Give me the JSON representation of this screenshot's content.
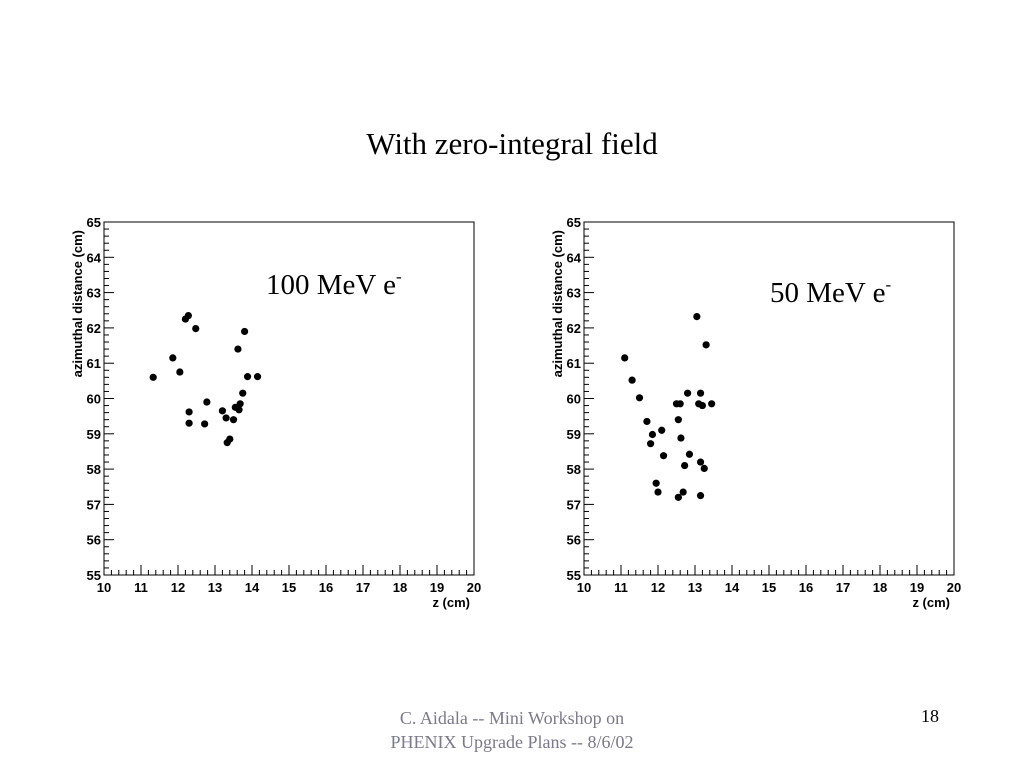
{
  "slide": {
    "title": "With zero-integral field",
    "footer_line1": "C. Aidala -- Mini Workshop on",
    "footer_line2": "PHENIX Upgrade Plans -- 8/6/02",
    "page_number": "18"
  },
  "chart_data": [
    {
      "type": "scatter",
      "title": "",
      "annotation": "100 MeV e",
      "annotation_superscript": "-",
      "xlabel": "z (cm)",
      "ylabel": "azimuthal distance (cm)",
      "xlim": [
        10,
        20
      ],
      "ylim": [
        55,
        65
      ],
      "xticks": [
        "10",
        "11",
        "12",
        "13",
        "14",
        "15",
        "16",
        "17",
        "18",
        "19",
        "20"
      ],
      "yticks": [
        "55",
        "56",
        "57",
        "58",
        "59",
        "60",
        "61",
        "62",
        "63",
        "64",
        "65"
      ],
      "grid": false,
      "marker_color": "#000000",
      "points": [
        [
          11.33,
          60.6
        ],
        [
          11.86,
          61.15
        ],
        [
          12.05,
          60.75
        ],
        [
          12.2,
          62.25
        ],
        [
          12.28,
          62.35
        ],
        [
          12.48,
          61.98
        ],
        [
          12.3,
          59.62
        ],
        [
          12.3,
          59.3
        ],
        [
          12.72,
          59.28
        ],
        [
          12.78,
          59.9
        ],
        [
          13.2,
          59.65
        ],
        [
          13.3,
          59.45
        ],
        [
          13.33,
          58.75
        ],
        [
          13.4,
          58.85
        ],
        [
          13.5,
          59.4
        ],
        [
          13.55,
          59.75
        ],
        [
          13.62,
          61.4
        ],
        [
          13.65,
          59.68
        ],
        [
          13.68,
          59.85
        ],
        [
          13.75,
          60.15
        ],
        [
          13.8,
          61.9
        ],
        [
          13.88,
          60.62
        ],
        [
          14.15,
          60.62
        ]
      ]
    },
    {
      "type": "scatter",
      "title": "",
      "annotation": "50 MeV e",
      "annotation_superscript": "-",
      "xlabel": "z (cm)",
      "ylabel": "azimuthal distance (cm)",
      "xlim": [
        10,
        20
      ],
      "ylim": [
        55,
        65
      ],
      "xticks": [
        "10",
        "11",
        "12",
        "13",
        "14",
        "15",
        "16",
        "17",
        "18",
        "19",
        "20"
      ],
      "yticks": [
        "55",
        "56",
        "57",
        "58",
        "59",
        "60",
        "61",
        "62",
        "63",
        "64",
        "65"
      ],
      "grid": false,
      "marker_color": "#000000",
      "points": [
        [
          11.1,
          61.15
        ],
        [
          11.3,
          60.52
        ],
        [
          11.5,
          60.02
        ],
        [
          11.7,
          59.35
        ],
        [
          11.8,
          58.72
        ],
        [
          11.85,
          58.98
        ],
        [
          11.95,
          57.6
        ],
        [
          12.0,
          57.35
        ],
        [
          12.1,
          59.1
        ],
        [
          12.15,
          58.38
        ],
        [
          12.5,
          59.85
        ],
        [
          12.55,
          59.4
        ],
        [
          12.55,
          57.2
        ],
        [
          12.6,
          59.85
        ],
        [
          12.62,
          58.88
        ],
        [
          12.68,
          57.35
        ],
        [
          12.72,
          58.1
        ],
        [
          12.8,
          60.15
        ],
        [
          12.85,
          58.42
        ],
        [
          13.05,
          62.32
        ],
        [
          13.1,
          59.85
        ],
        [
          13.15,
          60.15
        ],
        [
          13.15,
          58.2
        ],
        [
          13.15,
          57.25
        ],
        [
          13.2,
          59.8
        ],
        [
          13.25,
          58.02
        ],
        [
          13.3,
          61.52
        ],
        [
          13.45,
          59.85
        ]
      ]
    }
  ]
}
